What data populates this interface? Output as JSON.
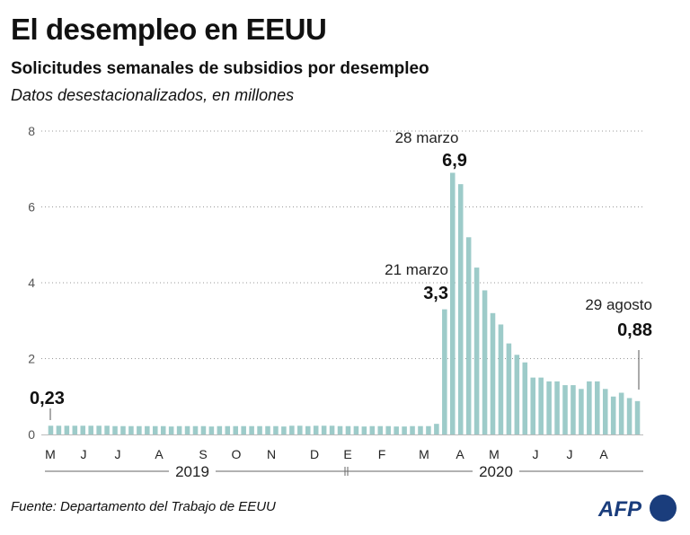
{
  "header": {
    "title": "El desempleo en EEUU",
    "subtitle": "Solicitudes semanales de subsidios por desempleo",
    "note": "Datos desestacionalizados, en millones"
  },
  "footer": {
    "source": "Fuente: Departamento del Trabajo de EEUU",
    "logo_text": "AFP",
    "logo_color": "#1a3d7c"
  },
  "chart_data": {
    "type": "bar",
    "bar_color": "#9dcbc9",
    "grid": "dotted horizontal",
    "ylim": [
      0,
      8
    ],
    "yticks": [
      "0",
      "2",
      "4",
      "6",
      "8"
    ],
    "month_labels": [
      "M",
      "J",
      "J",
      "A",
      "S",
      "O",
      "N",
      "D",
      "E",
      "F",
      "M",
      "A",
      "M",
      "J",
      "J",
      "A"
    ],
    "years": [
      "2019",
      "2020"
    ],
    "values": [
      0.23,
      0.23,
      0.23,
      0.23,
      0.23,
      0.23,
      0.23,
      0.23,
      0.22,
      0.22,
      0.22,
      0.22,
      0.22,
      0.22,
      0.22,
      0.21,
      0.22,
      0.22,
      0.22,
      0.22,
      0.21,
      0.22,
      0.22,
      0.22,
      0.22,
      0.22,
      0.22,
      0.22,
      0.22,
      0.21,
      0.23,
      0.23,
      0.22,
      0.23,
      0.23,
      0.23,
      0.22,
      0.22,
      0.22,
      0.21,
      0.22,
      0.22,
      0.22,
      0.21,
      0.21,
      0.22,
      0.22,
      0.22,
      0.28,
      3.3,
      6.9,
      6.6,
      5.2,
      4.4,
      3.8,
      3.2,
      2.9,
      2.4,
      2.1,
      1.9,
      1.5,
      1.5,
      1.4,
      1.4,
      1.3,
      1.3,
      1.2,
      1.4,
      1.4,
      1.2,
      1.0,
      1.1,
      0.96,
      0.88
    ],
    "annotations": [
      {
        "date": "",
        "value": "0,23"
      },
      {
        "date": "21 marzo",
        "value": "3,3"
      },
      {
        "date": "28 marzo",
        "value": "6,9"
      },
      {
        "date": "29 agosto",
        "value": "0,88"
      }
    ]
  }
}
